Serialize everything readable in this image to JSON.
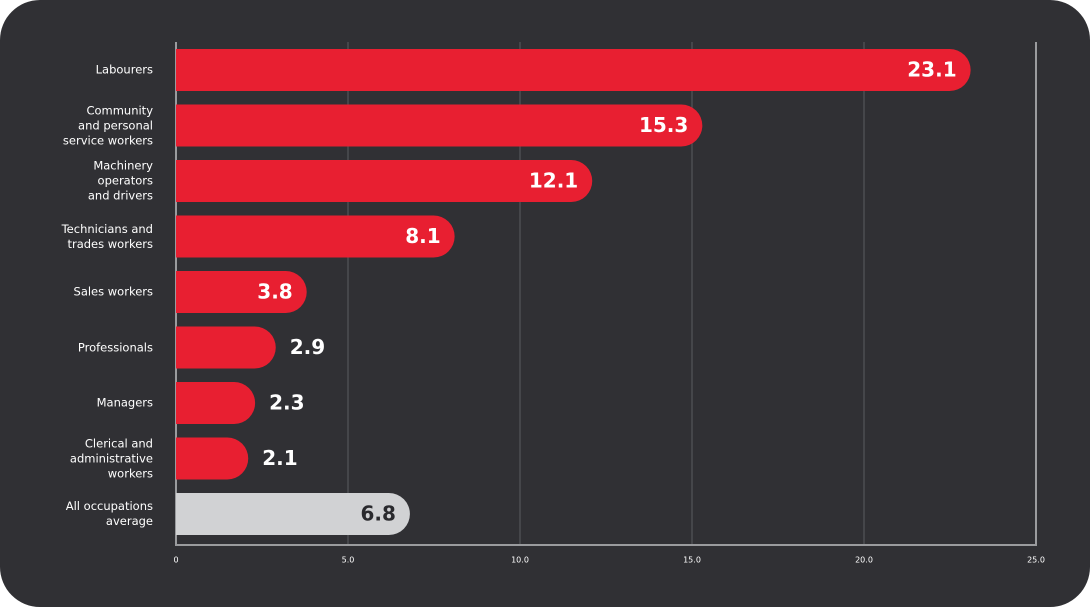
{
  "chart_data": {
    "type": "bar",
    "orientation": "horizontal",
    "categories": [
      "Labourers",
      "Community\nand personal\nservice workers",
      "Machinery\noperators\nand drivers",
      "Technicians and\ntrades workers",
      "Sales workers",
      "Professionals",
      "Managers",
      "Clerical and\nadministrative\nworkers",
      "All occupations\naverage"
    ],
    "values": [
      23.1,
      15.3,
      12.1,
      8.1,
      3.8,
      2.9,
      2.3,
      2.1,
      6.8
    ],
    "colors": [
      "#e81f31",
      "#e81f31",
      "#e81f31",
      "#e81f31",
      "#e81f31",
      "#e81f31",
      "#e81f31",
      "#e81f31",
      "#d1d2d4"
    ],
    "xlim": [
      0,
      25
    ],
    "xticks": [
      0,
      {
        "value": 5,
        "label": "5.0"
      },
      {
        "value": 10,
        "label": "10.0"
      },
      {
        "value": 15,
        "label": "15.0"
      },
      {
        "value": 20,
        "label": "20.0"
      },
      {
        "value": 25,
        "label": "25.0"
      }
    ],
    "grid": true
  }
}
